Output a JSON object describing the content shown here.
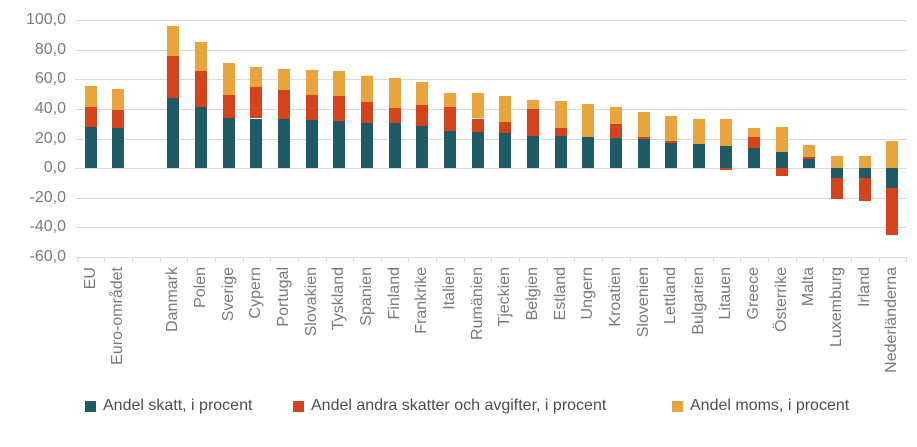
{
  "chart_data": {
    "type": "stacked-bar",
    "title": "",
    "categories": [
      "EU",
      "Euro-området",
      "Danmark",
      "Polen",
      "Sverige",
      "Cypern",
      "Portugal",
      "Slovakien",
      "Tyskland",
      "Spanien",
      "Finland",
      "Frankrike",
      "Italien",
      "Rumänien",
      "Tjeckien",
      "Belgien",
      "Estland",
      "Ungern",
      "Kroatien",
      "Slovenien",
      "Lettland",
      "Bulgarien",
      "Litauen",
      "Greece",
      "Österrike",
      "Malta",
      "Luxemburg",
      "Irland",
      "Nederländerna"
    ],
    "gap_after_index": 1,
    "series": [
      {
        "name": "Andel skatt, i procent",
        "color": "#1f5b66",
        "values": [
          27.5,
          27,
          47.5,
          41.5,
          34,
          33.5,
          33,
          32.5,
          32,
          30.5,
          30.5,
          28.5,
          25,
          24.5,
          23.5,
          22,
          21.5,
          21,
          20.5,
          19.5,
          17,
          16.5,
          15,
          13.5,
          11,
          6,
          -6.5,
          -7,
          -13.5
        ]
      },
      {
        "name": "Andel andra skatter och avgifter, i procent",
        "color": "#d5431d",
        "values": [
          13.5,
          12,
          28,
          24,
          15.5,
          21,
          20,
          17,
          17,
          14,
          10,
          14,
          16.5,
          9,
          7.5,
          18,
          5.5,
          0,
          9,
          1.5,
          1,
          0,
          -1,
          7.5,
          -5,
          1.5,
          -14.5,
          -15.5,
          -31.5
        ]
      },
      {
        "name": "Andel moms, i procent",
        "color": "#e9a53c",
        "values": [
          14.5,
          14.5,
          20.5,
          19.5,
          21.5,
          14,
          14,
          16.5,
          16.5,
          18,
          20.5,
          15.5,
          9.5,
          17,
          17.5,
          6,
          18,
          22,
          12,
          17,
          17.5,
          17,
          18,
          6,
          17,
          8,
          8,
          8.5,
          18.5
        ]
      }
    ],
    "ylim": [
      -60,
      100
    ],
    "ytick_step": 20,
    "ytick_labels": [
      "100,0",
      "80,0",
      "60,0",
      "40,0",
      "20,0",
      "0,0",
      "-20,0",
      "-40,0",
      "-60,0"
    ],
    "grid": true,
    "legend_position": "bottom",
    "gridline_color": "#d9d9d9",
    "axis_text_color": "#7a7a7a",
    "legend_text_color": "#4d4d4d"
  }
}
